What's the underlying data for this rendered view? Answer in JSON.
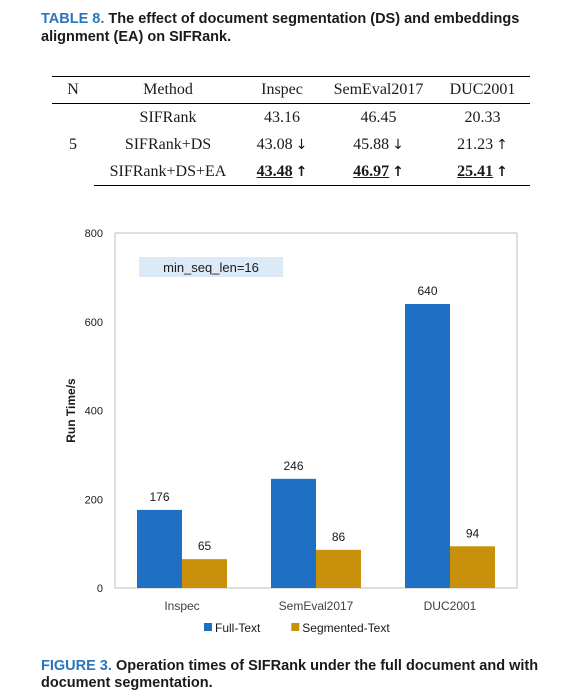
{
  "table": {
    "tag": "TABLE 8.",
    "caption": "The effect of document segmentation (DS) and embeddings alignment (EA) on SIFRank.",
    "headers": [
      "N",
      "Method",
      "Inspec",
      "SemEval2017",
      "DUC2001"
    ],
    "n_value": "5",
    "rows": [
      {
        "method": "SIFRank",
        "inspec": "43.16",
        "semeval": "46.45",
        "duc": "20.33",
        "inspec_arrow": "",
        "semeval_arrow": "",
        "duc_arrow": ""
      },
      {
        "method": "SIFRank+DS",
        "inspec": "43.08",
        "semeval": "45.88",
        "duc": "21.23",
        "inspec_arrow": "↓",
        "semeval_arrow": "↓",
        "duc_arrow": "↑"
      },
      {
        "method": "SIFRank+DS+EA",
        "inspec": "43.48",
        "semeval": "46.97",
        "duc": "25.41",
        "inspec_arrow": "↑",
        "semeval_arrow": "↑",
        "duc_arrow": "↑"
      }
    ]
  },
  "figure": {
    "tag": "FIGURE 3.",
    "caption": "Operation times of SIFRank under the full document and with document segmentation."
  },
  "chart_data": {
    "type": "bar",
    "categories": [
      "Inspec",
      "SemEval2017",
      "DUC2001"
    ],
    "series": [
      {
        "name": "Full-Text",
        "values": [
          176,
          246,
          640
        ],
        "color": "#1f6fc5"
      },
      {
        "name": "Segmented-Text",
        "values": [
          65,
          86,
          94
        ],
        "color": "#c8900b"
      }
    ],
    "ylabel": "Run Time/s",
    "xlabel": "",
    "ylim": [
      0,
      800
    ],
    "yticks": [
      0,
      200,
      400,
      600,
      800
    ],
    "annotation": "min_seq_len=16",
    "legend": "bottom",
    "grid": false
  }
}
